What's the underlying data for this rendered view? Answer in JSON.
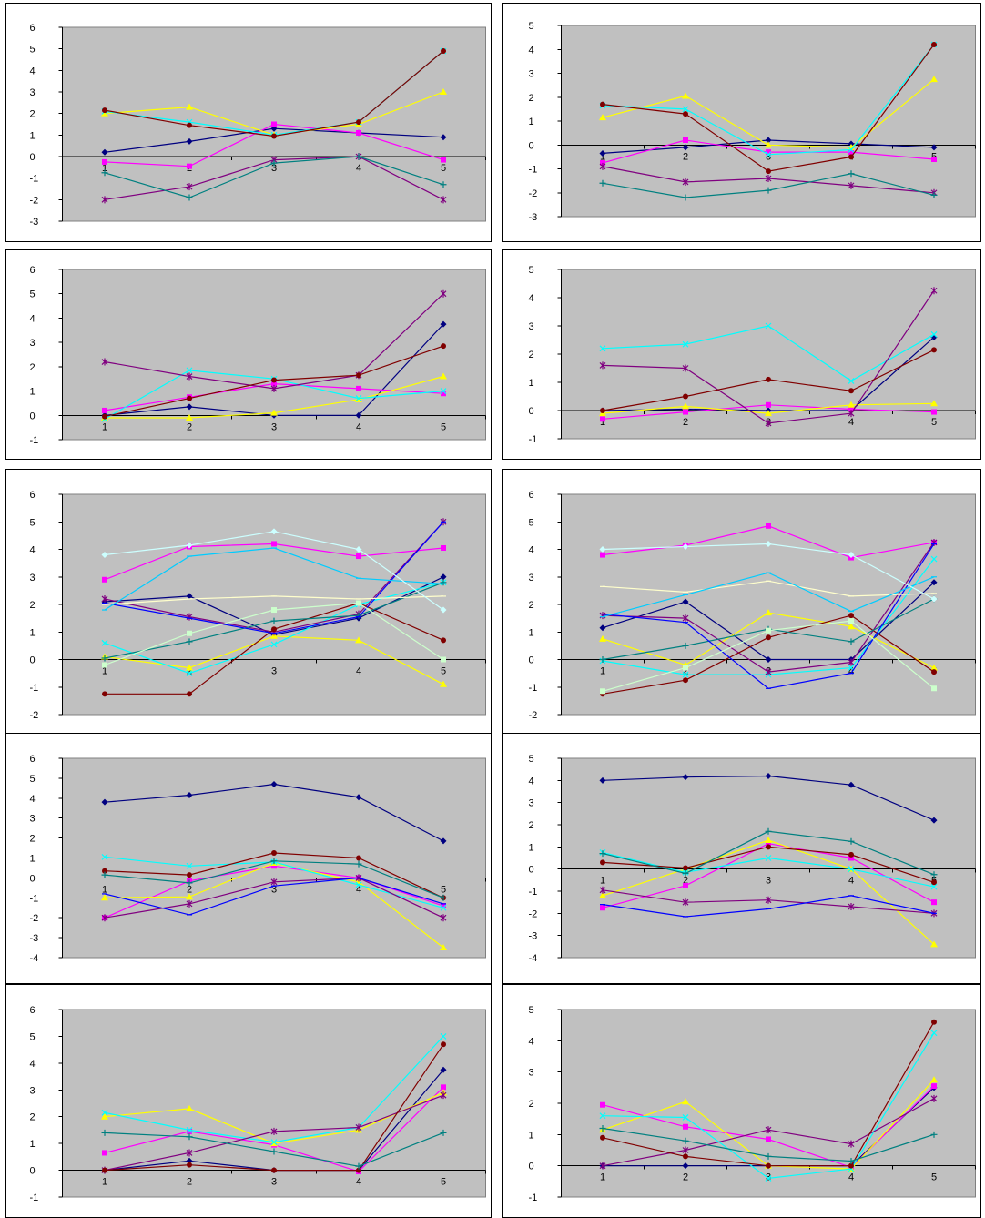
{
  "colors": [
    "#000080",
    "#ff00ff",
    "#ffff00",
    "#00ffff",
    "#800080",
    "#800000",
    "#008080",
    "#0000ff",
    "#ccffcc",
    "#ffffcc",
    "#00ccff",
    "#ccffff"
  ],
  "markers": [
    "diamond",
    "square",
    "triangle",
    "x",
    "star",
    "circle",
    "plus",
    "line",
    "square",
    "line",
    "line",
    "diamond"
  ],
  "chart_data": [
    {
      "type": "line",
      "categories": [
        "1",
        "2",
        "3",
        "4",
        "5"
      ],
      "ylim": [
        -3,
        6
      ],
      "yticks": [
        -3,
        -2,
        -1,
        0,
        1,
        2,
        3,
        4,
        5,
        6
      ],
      "series": [
        {
          "values": [
            0.2,
            0.7,
            1.3,
            1.1,
            0.9
          ]
        },
        {
          "values": [
            -0.25,
            -0.45,
            1.5,
            1.1,
            -0.15
          ]
        },
        {
          "values": [
            2.0,
            2.3,
            1.0,
            1.5,
            3.0
          ]
        },
        {
          "values": [
            2.1,
            1.6,
            1.0,
            1.6,
            4.9
          ]
        },
        {
          "values": [
            -2.0,
            -1.4,
            -0.15,
            0.0,
            -2.0
          ]
        },
        {
          "values": [
            2.15,
            1.45,
            0.95,
            1.6,
            4.9
          ]
        },
        {
          "values": [
            -0.75,
            -1.9,
            -0.3,
            0.0,
            -1.3
          ]
        }
      ]
    },
    {
      "type": "line",
      "categories": [
        "1",
        "2",
        "3",
        "4",
        "5"
      ],
      "ylim": [
        -3,
        5
      ],
      "yticks": [
        -3,
        -2,
        -1,
        0,
        1,
        2,
        3,
        4,
        5
      ],
      "series": [
        {
          "values": [
            -0.35,
            -0.1,
            0.2,
            0.05,
            -0.1
          ]
        },
        {
          "values": [
            -0.75,
            0.2,
            -0.3,
            -0.3,
            -0.6
          ]
        },
        {
          "values": [
            1.15,
            2.05,
            0.0,
            -0.1,
            2.75
          ]
        },
        {
          "values": [
            1.65,
            1.5,
            -0.4,
            -0.2,
            4.2
          ]
        },
        {
          "values": [
            -0.9,
            -1.55,
            -1.4,
            -1.7,
            -2.0
          ]
        },
        {
          "values": [
            1.7,
            1.3,
            -1.1,
            -0.5,
            4.2
          ]
        },
        {
          "values": [
            -1.6,
            -2.2,
            -1.9,
            -1.2,
            -2.1
          ]
        }
      ]
    },
    {
      "type": "line",
      "categories": [
        "1",
        "2",
        "3",
        "4",
        "5"
      ],
      "ylim": [
        -1,
        6
      ],
      "yticks": [
        -1,
        0,
        1,
        2,
        3,
        4,
        5,
        6
      ],
      "series": [
        {
          "values": [
            0.0,
            0.35,
            0.0,
            0.0,
            3.75
          ]
        },
        {
          "values": [
            0.2,
            0.75,
            1.3,
            1.1,
            0.9
          ]
        },
        {
          "values": [
            -0.1,
            -0.1,
            0.1,
            0.65,
            1.6
          ]
        },
        {
          "values": [
            -0.15,
            1.85,
            1.5,
            0.7,
            1.0
          ]
        },
        {
          "values": [
            2.2,
            1.6,
            1.1,
            1.65,
            5.0
          ]
        },
        {
          "values": [
            -0.05,
            0.7,
            1.45,
            1.65,
            2.85
          ]
        }
      ]
    },
    {
      "type": "line",
      "categories": [
        "1",
        "2",
        "3",
        "4",
        "5"
      ],
      "ylim": [
        -1,
        5
      ],
      "yticks": [
        -1,
        0,
        1,
        2,
        3,
        4,
        5
      ],
      "series": [
        {
          "values": [
            0.0,
            0.05,
            0.0,
            0.0,
            2.6
          ]
        },
        {
          "values": [
            -0.3,
            -0.05,
            0.2,
            0.05,
            -0.05
          ]
        },
        {
          "values": [
            -0.1,
            0.15,
            -0.1,
            0.2,
            0.25
          ]
        },
        {
          "values": [
            2.2,
            2.35,
            3.0,
            1.05,
            2.7
          ]
        },
        {
          "values": [
            1.6,
            1.5,
            -0.45,
            -0.1,
            4.25
          ]
        },
        {
          "values": [
            0.0,
            0.5,
            1.1,
            0.7,
            2.15
          ]
        }
      ]
    },
    {
      "type": "line",
      "categories": [
        "1",
        "2",
        "3",
        "4",
        "5"
      ],
      "ylim": [
        -2,
        6
      ],
      "yticks": [
        -2,
        -1,
        0,
        1,
        2,
        3,
        4,
        5,
        6
      ],
      "series": [
        {
          "values": [
            2.1,
            2.3,
            0.9,
            1.5,
            3.0
          ]
        },
        {
          "values": [
            2.9,
            4.1,
            4.2,
            3.75,
            4.05
          ]
        },
        {
          "values": [
            0.1,
            -0.3,
            0.85,
            0.7,
            -0.9
          ]
        },
        {
          "values": [
            0.6,
            -0.5,
            0.55,
            2.0,
            2.8
          ]
        },
        {
          "values": [
            2.2,
            1.55,
            1.0,
            1.65,
            5.0
          ]
        },
        {
          "values": [
            -1.25,
            -1.25,
            1.1,
            2.05,
            0.7
          ]
        },
        {
          "values": [
            0.05,
            0.65,
            1.4,
            1.6,
            2.8
          ]
        },
        {
          "values": [
            2.05,
            1.5,
            0.95,
            1.55,
            5.0
          ]
        },
        {
          "values": [
            -0.2,
            0.95,
            1.8,
            2.05,
            0.0
          ]
        },
        {
          "values": [
            2.0,
            2.2,
            2.3,
            2.2,
            2.3
          ]
        },
        {
          "values": [
            1.8,
            3.75,
            4.05,
            2.95,
            2.75
          ]
        },
        {
          "values": [
            3.8,
            4.15,
            4.65,
            4.0,
            1.8
          ]
        }
      ]
    },
    {
      "type": "line",
      "categories": [
        "1",
        "2",
        "3",
        "4",
        "5"
      ],
      "ylim": [
        -2,
        6
      ],
      "yticks": [
        -2,
        -1,
        0,
        1,
        2,
        3,
        4,
        5,
        6
      ],
      "series": [
        {
          "values": [
            1.15,
            2.1,
            0.0,
            0.0,
            2.8
          ]
        },
        {
          "values": [
            3.8,
            4.15,
            4.85,
            3.7,
            4.25
          ]
        },
        {
          "values": [
            0.75,
            -0.2,
            1.7,
            1.2,
            -0.3
          ]
        },
        {
          "values": [
            -0.05,
            -0.55,
            -0.55,
            -0.3,
            3.65
          ]
        },
        {
          "values": [
            1.6,
            1.5,
            -0.45,
            -0.1,
            4.25
          ]
        },
        {
          "values": [
            -1.25,
            -0.75,
            0.8,
            1.6,
            -0.45
          ]
        },
        {
          "values": [
            0.0,
            0.5,
            1.1,
            0.65,
            2.2
          ]
        },
        {
          "values": [
            1.65,
            1.35,
            -1.05,
            -0.5,
            4.2
          ]
        },
        {
          "values": [
            -1.15,
            -0.3,
            1.05,
            1.4,
            -1.05
          ]
        },
        {
          "values": [
            2.65,
            2.45,
            2.85,
            2.3,
            2.4
          ]
        },
        {
          "values": [
            1.55,
            2.35,
            3.15,
            1.75,
            3.0
          ]
        },
        {
          "values": [
            4.0,
            4.1,
            4.2,
            3.8,
            2.2
          ]
        }
      ]
    },
    {
      "type": "line",
      "categories": [
        "1",
        "2",
        "3",
        "4",
        "5"
      ],
      "ylim": [
        -4,
        6
      ],
      "yticks": [
        -4,
        -3,
        -2,
        -1,
        0,
        1,
        2,
        3,
        4,
        5,
        6
      ],
      "series": [
        {
          "values": [
            3.8,
            4.15,
            4.7,
            4.05,
            1.85
          ]
        },
        {
          "values": [
            -2.0,
            -0.15,
            0.6,
            0.0,
            -1.4
          ]
        },
        {
          "values": [
            -1.0,
            -0.95,
            0.75,
            -0.2,
            -3.5
          ]
        },
        {
          "values": [
            1.05,
            0.6,
            0.8,
            -0.35,
            -1.5
          ]
        },
        {
          "values": [
            -2.0,
            -1.3,
            -0.2,
            0.0,
            -2.0
          ]
        },
        {
          "values": [
            0.35,
            0.15,
            1.25,
            1.0,
            -1.0
          ]
        },
        {
          "values": [
            0.15,
            -0.25,
            0.85,
            0.7,
            -1.0
          ]
        },
        {
          "values": [
            -0.8,
            -1.85,
            -0.4,
            0.0,
            -1.3
          ]
        }
      ]
    },
    {
      "type": "line",
      "categories": [
        "1",
        "2",
        "3",
        "4",
        "5"
      ],
      "ylim": [
        -4,
        5
      ],
      "yticks": [
        -4,
        -3,
        -2,
        -1,
        0,
        1,
        2,
        3,
        4,
        5
      ],
      "series": [
        {
          "values": [
            4.0,
            4.15,
            4.2,
            3.8,
            2.2
          ]
        },
        {
          "values": [
            -1.75,
            -0.75,
            1.15,
            0.5,
            -1.5
          ]
        },
        {
          "values": [
            -1.2,
            0.0,
            1.3,
            0.0,
            -3.4
          ]
        },
        {
          "values": [
            0.75,
            -0.15,
            0.5,
            0.0,
            -0.8
          ]
        },
        {
          "values": [
            -0.95,
            -1.5,
            -1.4,
            -1.7,
            -2.0
          ]
        },
        {
          "values": [
            0.3,
            0.05,
            1.0,
            0.65,
            -0.6
          ]
        },
        {
          "values": [
            0.7,
            -0.2,
            1.7,
            1.25,
            -0.25
          ]
        },
        {
          "values": [
            -1.6,
            -2.15,
            -1.8,
            -1.2,
            -2.0
          ]
        }
      ]
    },
    {
      "type": "line",
      "categories": [
        "1",
        "2",
        "3",
        "4",
        "5"
      ],
      "ylim": [
        -1,
        6
      ],
      "yticks": [
        -1,
        0,
        1,
        2,
        3,
        4,
        5,
        6
      ],
      "series": [
        {
          "values": [
            0.0,
            0.35,
            0.0,
            0.0,
            3.75
          ]
        },
        {
          "values": [
            0.65,
            1.45,
            0.95,
            -0.05,
            3.1
          ]
        },
        {
          "values": [
            2.0,
            2.3,
            1.0,
            1.5,
            2.9
          ]
        },
        {
          "values": [
            2.15,
            1.5,
            1.05,
            1.6,
            5.0
          ]
        },
        {
          "values": [
            0.0,
            0.65,
            1.45,
            1.6,
            2.8
          ]
        },
        {
          "values": [
            0.0,
            0.2,
            0.0,
            0.0,
            4.7
          ]
        },
        {
          "values": [
            1.4,
            1.25,
            0.7,
            0.15,
            1.4
          ]
        }
      ]
    },
    {
      "type": "line",
      "categories": [
        "1",
        "2",
        "3",
        "4",
        "5"
      ],
      "ylim": [
        -1,
        5
      ],
      "yticks": [
        -1,
        0,
        1,
        2,
        3,
        4,
        5
      ],
      "series": [
        {
          "values": [
            0.0,
            0.0,
            0.0,
            0.0,
            2.5
          ]
        },
        {
          "values": [
            1.95,
            1.25,
            0.85,
            -0.05,
            2.55
          ]
        },
        {
          "values": [
            1.15,
            2.05,
            0.0,
            -0.1,
            2.75
          ]
        },
        {
          "values": [
            1.6,
            1.55,
            -0.4,
            -0.1,
            4.25
          ]
        },
        {
          "values": [
            0.0,
            0.5,
            1.15,
            0.7,
            2.15
          ]
        },
        {
          "values": [
            0.9,
            0.3,
            0.0,
            0.0,
            4.6
          ]
        },
        {
          "values": [
            1.2,
            0.8,
            0.3,
            0.15,
            1.0
          ]
        }
      ]
    }
  ]
}
